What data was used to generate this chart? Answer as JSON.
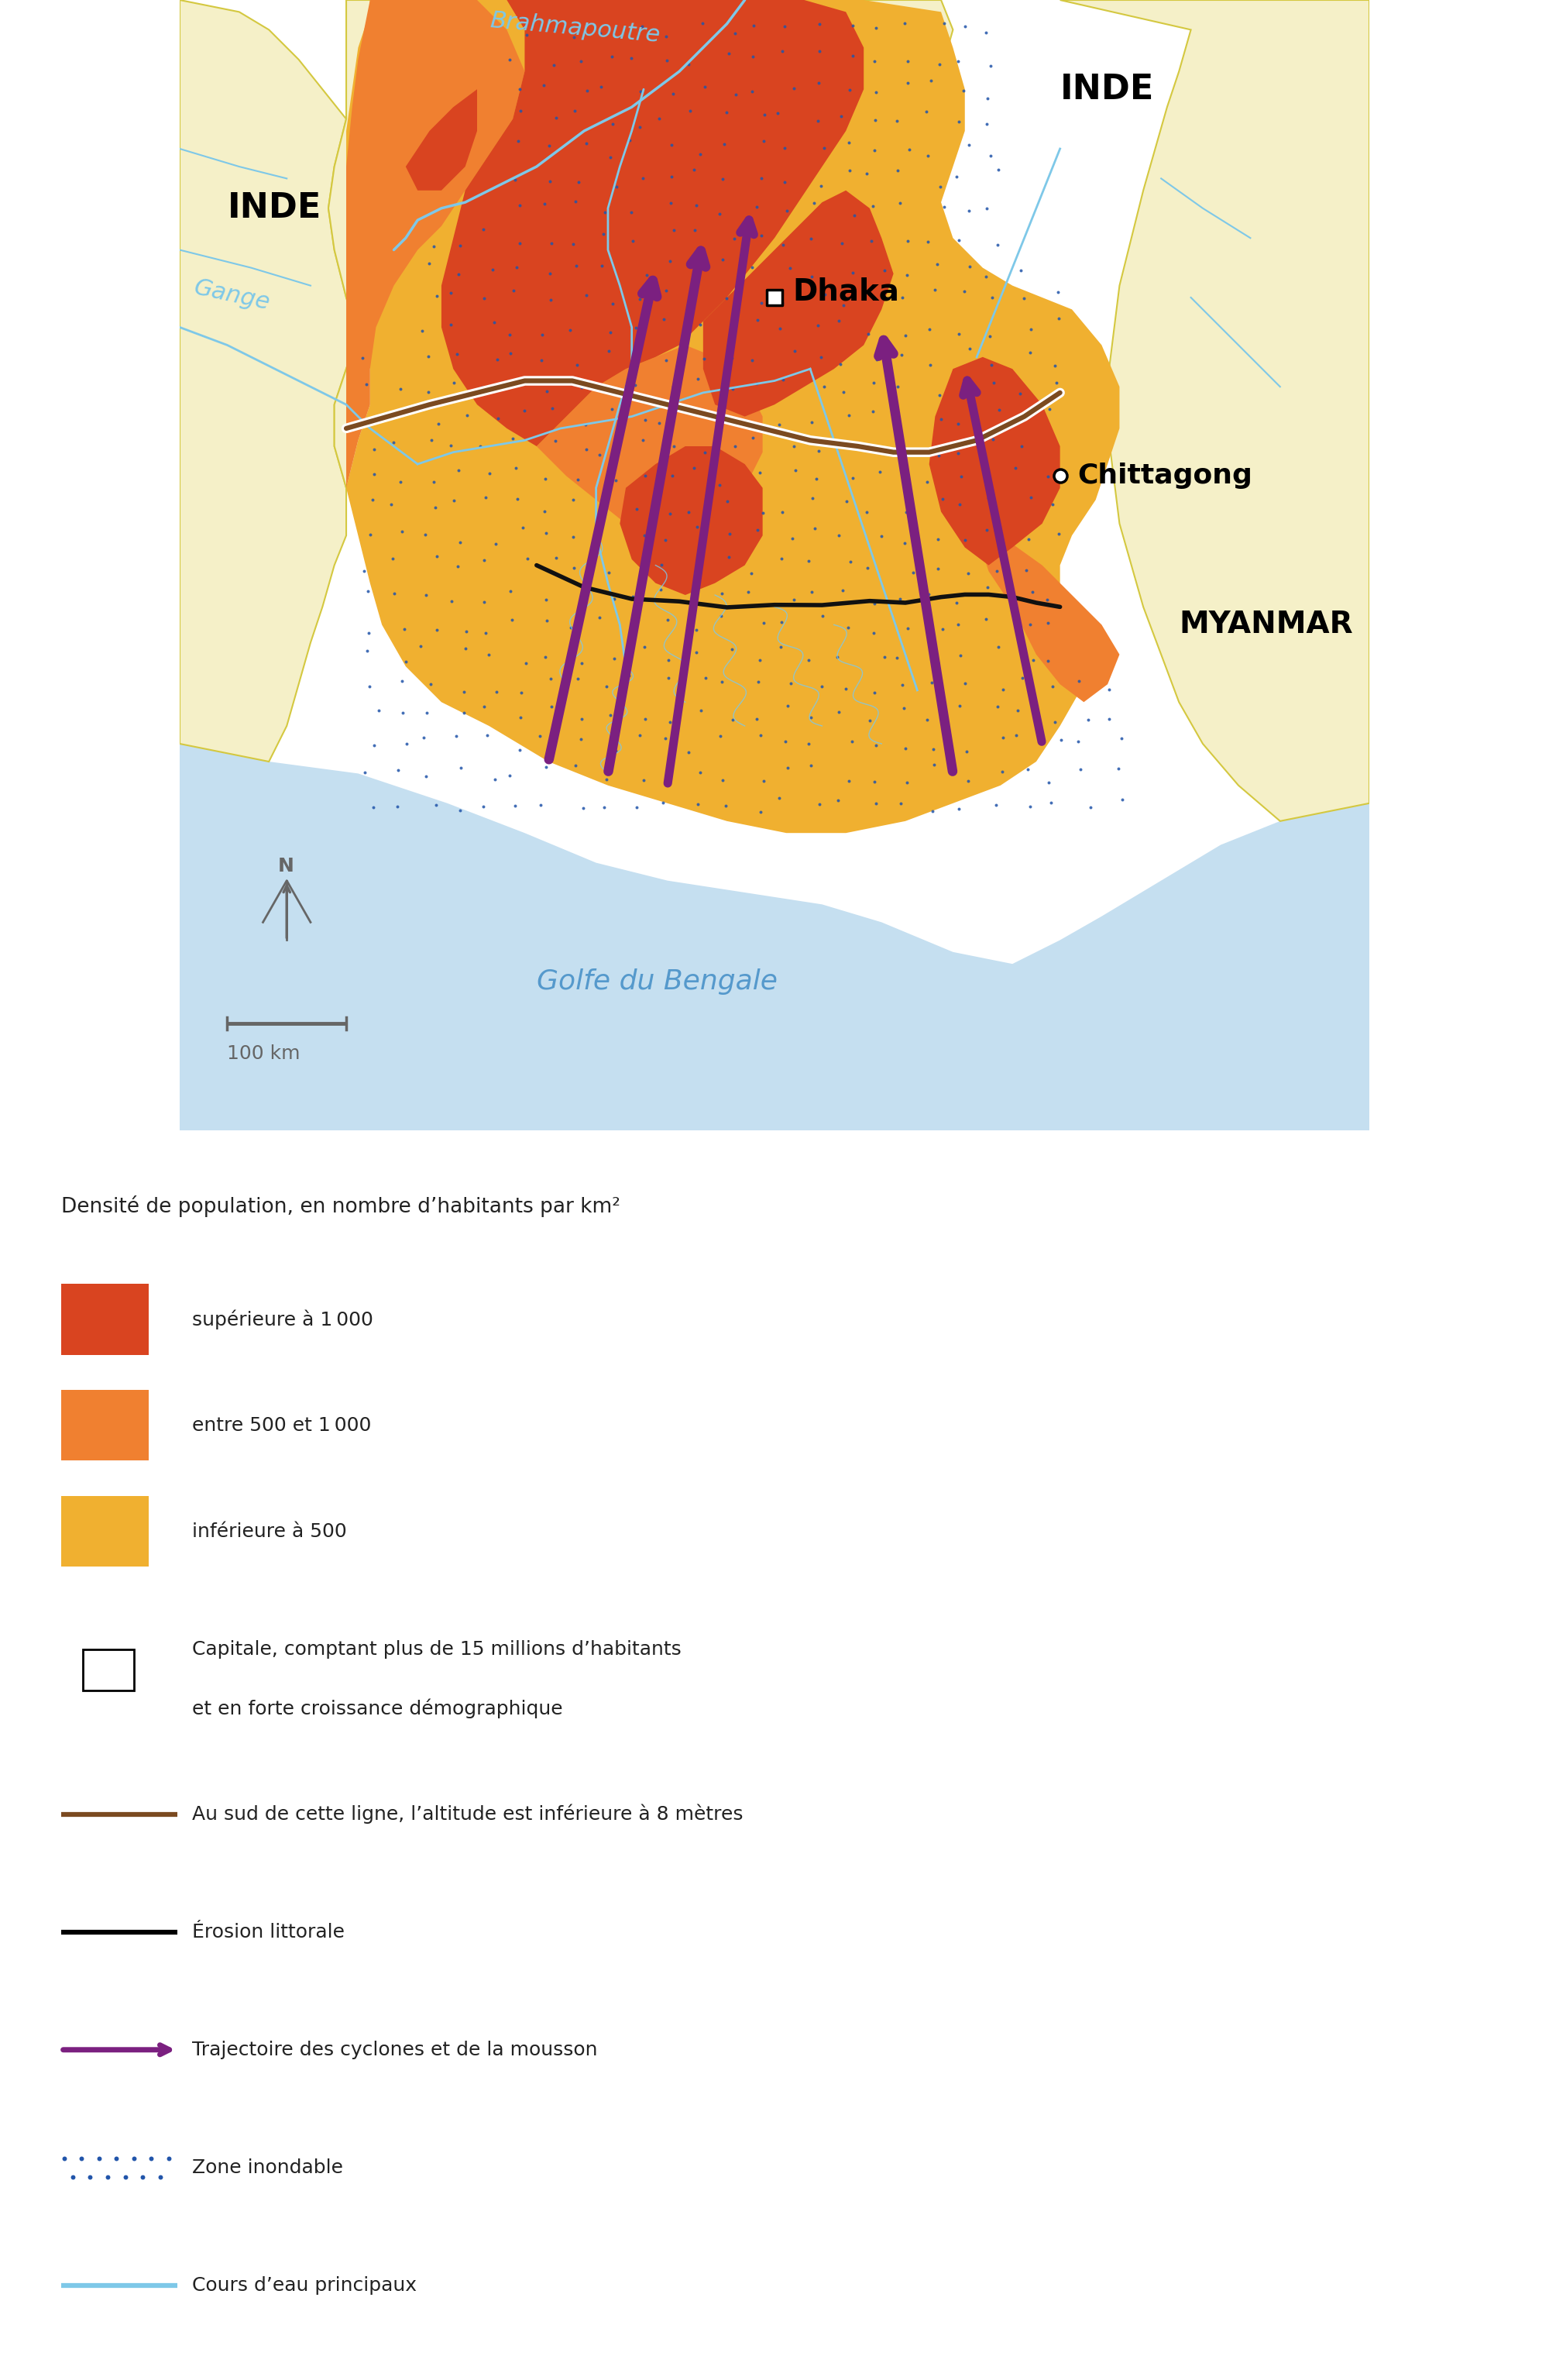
{
  "background_color": "#F5F0C8",
  "sea_color": "#C5DFF0",
  "border_color_india": "#D4C840",
  "border_color_myanmar": "#D4C840",
  "river_color": "#7EC8E8",
  "title_text": "Densité de population, en nombre d’habitants par km²",
  "legend_items": [
    {
      "color": "#D94420",
      "label": "supérieure à 1 000"
    },
    {
      "color": "#F08030",
      "label": "entre 500 et 1 000"
    },
    {
      "color": "#F0B030",
      "label": "inférieure à 500"
    }
  ],
  "label_india_left": "INDE",
  "label_india_top": "INDE",
  "label_myanmar": "MYANMAR",
  "label_river_gange": "Gange",
  "label_river_brahma": "Brahmapoutre",
  "label_sea": "Golfe du Bengale",
  "label_dhaka": "Dhaka",
  "label_chittagong": "Chittagong",
  "color_dense1": "#D94420",
  "color_dense2": "#F08030",
  "color_dense3": "#F0B030",
  "color_flood_dot": "#2255AA",
  "color_arrow": "#7B2080",
  "color_erosion_line": "#111111",
  "color_altitude_brown": "#7B4A20",
  "color_altitude_white": "#FFFFFF",
  "compass_color": "#666666",
  "legend_capital_label": "Capitale, comptant plus de 15 millions d’habitants\net en forte croissance démographique",
  "legend_altitude_label": "Au sud de cette ligne, l’altitude est inférieure à 8 mètres",
  "legend_erosion_label": "Érosion littorale",
  "legend_cyclone_label": "Trajectoire des cyclones et de la mousson",
  "legend_flood_label": "Zone inondable",
  "legend_river_label": "Cours d’eau principaux"
}
